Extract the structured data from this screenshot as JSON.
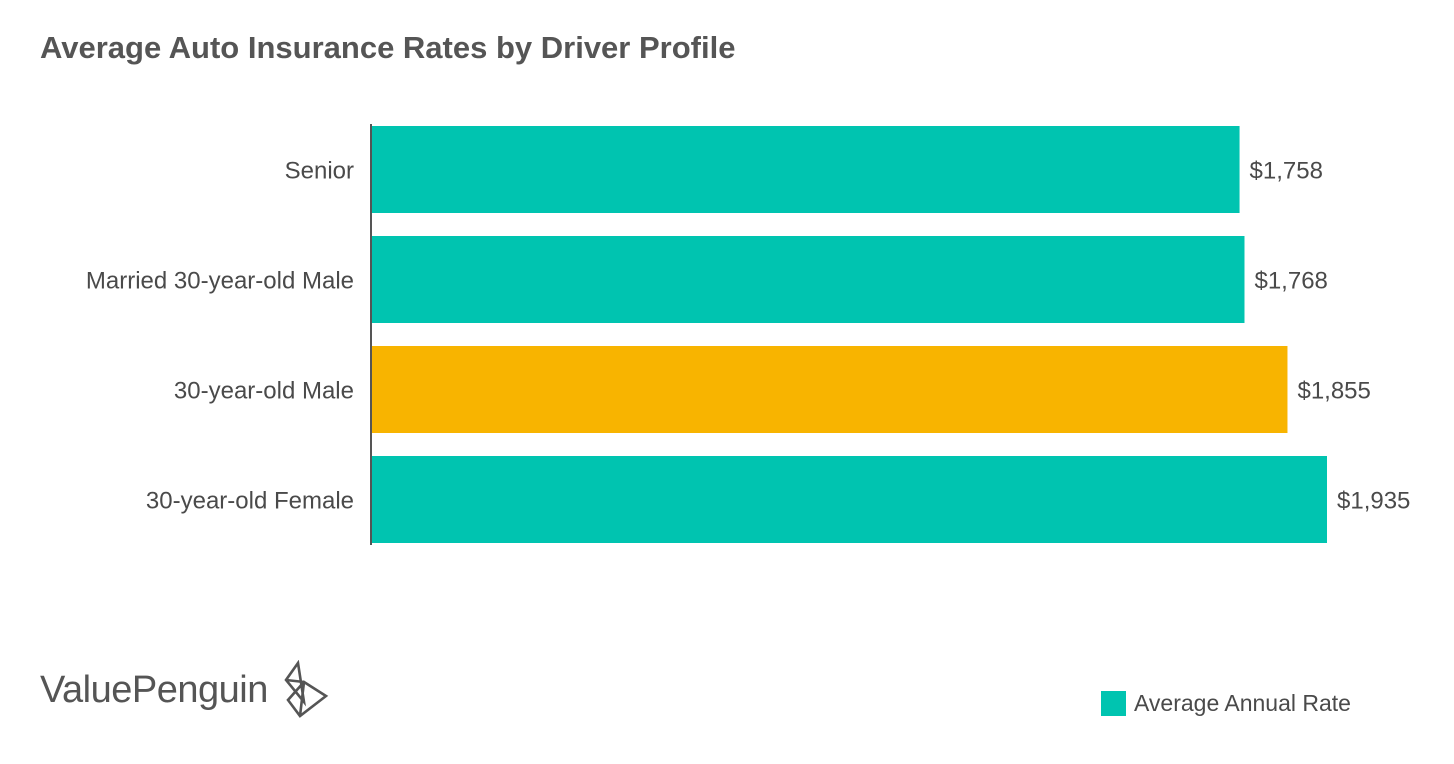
{
  "chart_data": {
    "type": "bar",
    "orientation": "horizontal",
    "title": "Average Auto Insurance Rates by Driver Profile",
    "categories": [
      "Senior",
      "Married 30-year-old Male",
      "30-year-old Male",
      "30-year-old Female"
    ],
    "series": [
      {
        "name": "Average Annual Rate",
        "values": [
          1758,
          1768,
          1855,
          1935
        ],
        "labels": [
          "$1,758",
          "$1,768",
          "$1,855",
          "$1,935"
        ]
      }
    ],
    "highlight_index": 2,
    "xlim": [
      0,
      1935
    ],
    "grid": false,
    "legend_position": "bottom-right"
  },
  "colors": {
    "bar": "#00c4b0",
    "highlight": "#f8b400",
    "axis": "#555555",
    "text": "#4a4a4a"
  },
  "brand": {
    "name": "ValuePenguin",
    "icon": "valuepenguin-logo-icon"
  }
}
